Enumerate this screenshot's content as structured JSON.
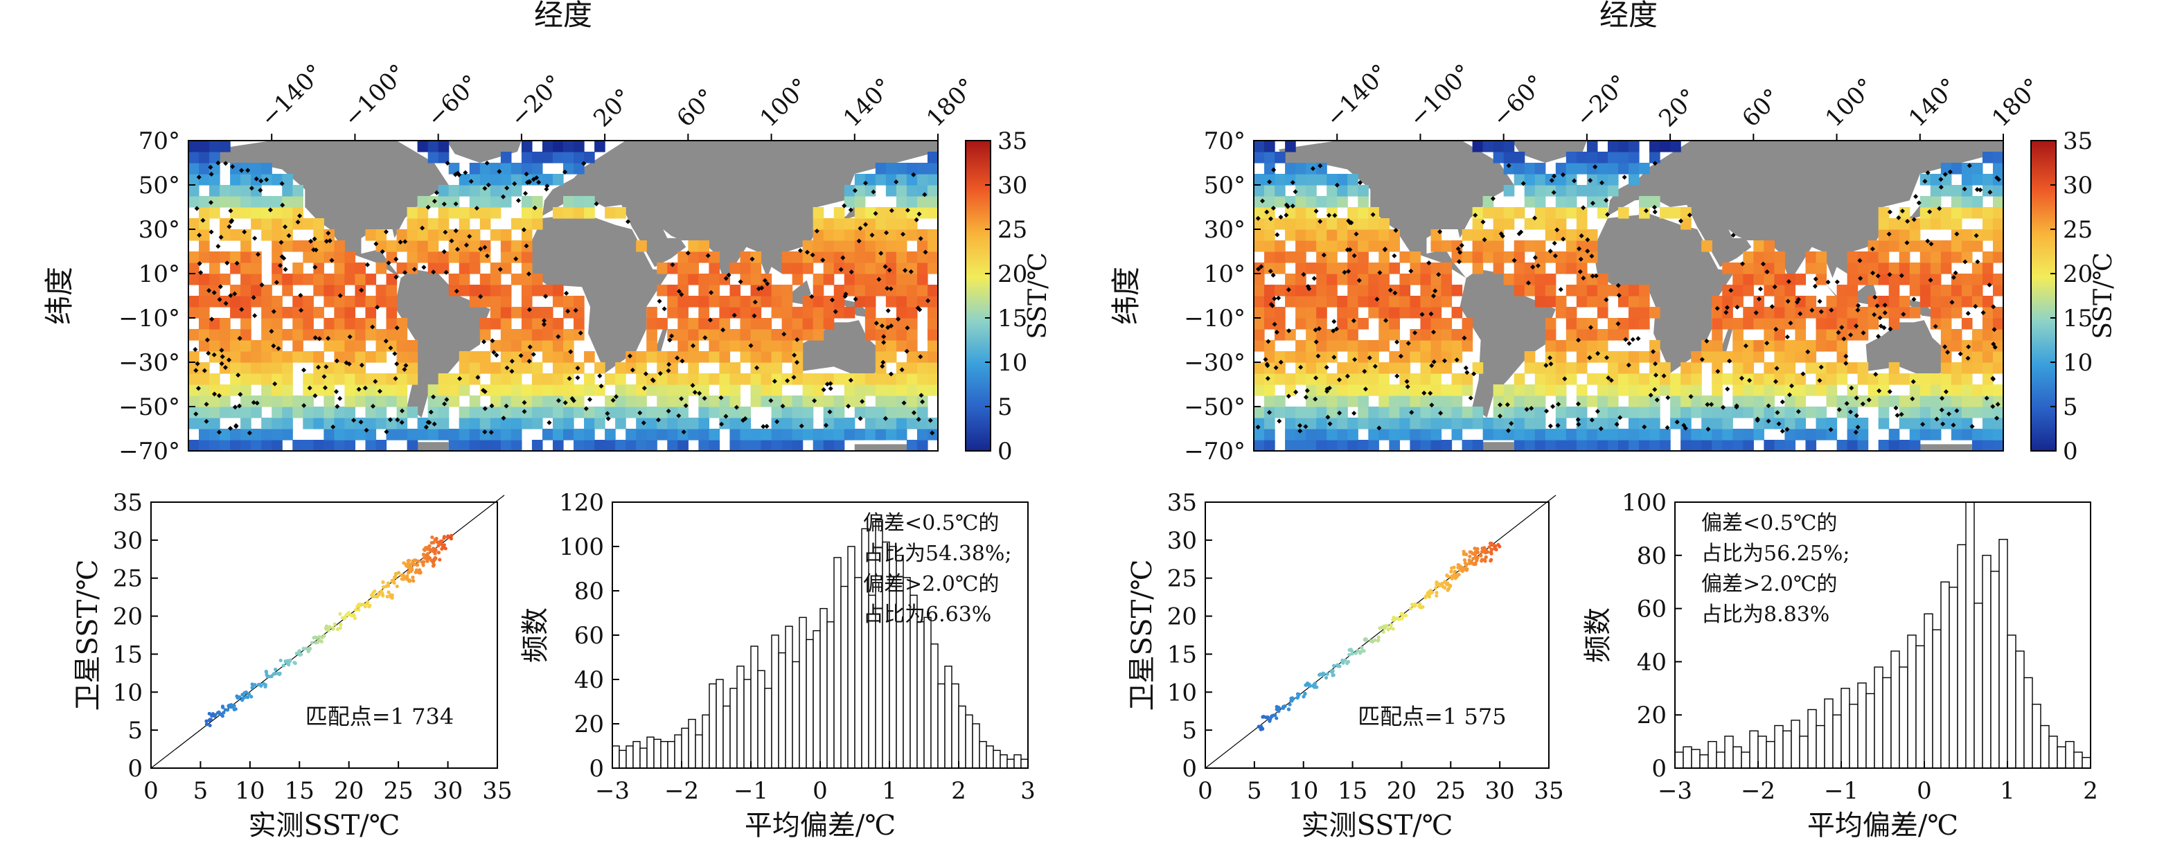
{
  "chart_data": [
    {
      "type": "heatmap",
      "panel": "map-left",
      "xlabel": "经度",
      "ylabel": "纬度",
      "x_ticks": [
        "−140°",
        "−100°",
        "−60°",
        "−20°",
        "20°",
        "60°",
        "100°",
        "140°",
        "180°"
      ],
      "x_tick_values": [
        -140,
        -100,
        -60,
        -20,
        20,
        60,
        100,
        140,
        180
      ],
      "y_ticks": [
        "70°",
        "50°",
        "30°",
        "10°",
        "−10°",
        "−30°",
        "−50°",
        "−70°"
      ],
      "y_tick_values": [
        70,
        50,
        30,
        10,
        -10,
        -30,
        -50,
        -70
      ],
      "xlim": [
        -180,
        180
      ],
      "ylim": [
        -70,
        70
      ],
      "colorbar": {
        "label": "SST/℃",
        "ticks": [
          "0",
          "5",
          "10",
          "15",
          "20",
          "25",
          "30",
          "35"
        ],
        "range": [
          0,
          35
        ]
      },
      "colors": {
        "land": "#8c8c8c",
        "no_data": "#ffffff",
        "matchup_points": "#000000"
      }
    },
    {
      "type": "heatmap",
      "panel": "map-right",
      "xlabel": "经度",
      "ylabel": "纬度",
      "x_ticks": [
        "−140°",
        "−100°",
        "−60°",
        "−20°",
        "20°",
        "60°",
        "100°",
        "140°",
        "180°"
      ],
      "x_tick_values": [
        -140,
        -100,
        -60,
        -20,
        20,
        60,
        100,
        140,
        180
      ],
      "y_ticks": [
        "70°",
        "50°",
        "30°",
        "10°",
        "−10°",
        "−30°",
        "−50°",
        "−70°"
      ],
      "y_tick_values": [
        70,
        50,
        30,
        10,
        -10,
        -30,
        -50,
        -70
      ],
      "xlim": [
        -180,
        180
      ],
      "ylim": [
        -70,
        70
      ],
      "colorbar": {
        "label": "SST/℃",
        "ticks": [
          "0",
          "5",
          "10",
          "15",
          "20",
          "25",
          "30",
          "35"
        ],
        "range": [
          0,
          35
        ]
      },
      "colors": {
        "land": "#8c8c8c",
        "no_data": "#ffffff",
        "matchup_points": "#000000"
      }
    },
    {
      "type": "scatter",
      "panel": "scatter-left",
      "xlabel": "实测SST/℃",
      "ylabel": "卫星SST/℃",
      "xlim": [
        0,
        35
      ],
      "ylim": [
        0,
        35
      ],
      "x_ticks": [
        "0",
        "5",
        "10",
        "15",
        "20",
        "25",
        "30",
        "35"
      ],
      "y_ticks": [
        "0",
        "5",
        "10",
        "15",
        "20",
        "25",
        "30",
        "35"
      ],
      "annotation": "匹配点=1 734",
      "reference_line": "y = x",
      "series": [
        {
          "x": [
            5.8,
            6.3,
            7.0,
            7.6,
            8.2,
            9.0,
            9.8,
            10.5,
            11.2,
            12.0,
            12.8,
            13.5,
            14.3,
            15.0,
            15.8,
            16.5,
            17.3,
            18.0,
            18.8,
            19.5,
            20.3,
            21.0,
            21.8,
            22.5,
            23.2,
            23.8,
            24.5,
            25.0,
            25.5,
            26.0,
            26.4,
            26.8,
            27.2,
            27.6,
            28.0,
            28.4,
            28.8,
            29.2,
            29.6,
            30.0,
            27.0,
            28.2,
            26.2,
            29.0,
            27.8,
            25.8,
            24.0,
            28.6
          ],
          "y": [
            6.0,
            6.8,
            7.1,
            8.0,
            8.0,
            9.3,
            9.6,
            10.9,
            11.0,
            12.4,
            12.6,
            13.9,
            14.0,
            15.3,
            15.6,
            16.9,
            17.0,
            18.3,
            18.6,
            19.9,
            20.1,
            21.2,
            21.6,
            22.9,
            23.0,
            24.1,
            24.3,
            25.4,
            25.2,
            26.5,
            26.1,
            27.2,
            26.9,
            28.0,
            27.6,
            28.8,
            28.5,
            29.5,
            29.2,
            30.3,
            25.8,
            27.0,
            25.0,
            27.6,
            29.0,
            27.0,
            22.8,
            30.0
          ]
        }
      ]
    },
    {
      "type": "bar",
      "panel": "hist-left",
      "xlabel": "平均偏差/℃",
      "ylabel": "频数",
      "xlim": [
        -3,
        3
      ],
      "ylim": [
        0,
        120
      ],
      "x_ticks": [
        "−3",
        "−2",
        "−1",
        "0",
        "1",
        "2",
        "3"
      ],
      "y_ticks": [
        "0",
        "20",
        "40",
        "60",
        "80",
        "100",
        "120"
      ],
      "annotation": [
        "偏差<0.5℃的",
        "占比为54.38%;",
        "偏差>2.0℃的",
        "占比为6.63%"
      ],
      "bin_start": -3,
      "bin_width": 0.1,
      "values": [
        10,
        8,
        10,
        12,
        9,
        14,
        13,
        12,
        12,
        15,
        18,
        22,
        15,
        24,
        38,
        40,
        28,
        36,
        46,
        40,
        55,
        44,
        36,
        60,
        52,
        64,
        48,
        68,
        58,
        62,
        72,
        66,
        95,
        82,
        100,
        86,
        108,
        78,
        112,
        102,
        100,
        96,
        86,
        78,
        66,
        68,
        56,
        38,
        46,
        38,
        28,
        24,
        20,
        12,
        10,
        8,
        6,
        4,
        6,
        4
      ]
    },
    {
      "type": "scatter",
      "panel": "scatter-right",
      "xlabel": "实测SST/℃",
      "ylabel": "卫星SST/℃",
      "xlim": [
        0,
        35
      ],
      "ylim": [
        0,
        35
      ],
      "x_ticks": [
        "0",
        "5",
        "10",
        "15",
        "20",
        "25",
        "30",
        "35"
      ],
      "y_ticks": [
        "0",
        "5",
        "10",
        "15",
        "20",
        "25",
        "30",
        "35"
      ],
      "annotation": "匹配点=1 575",
      "reference_line": "y = x",
      "series": [
        {
          "x": [
            5.5,
            6.2,
            6.9,
            7.6,
            8.3,
            9.0,
            9.8,
            10.5,
            11.2,
            12.0,
            12.8,
            13.5,
            14.3,
            15.0,
            15.8,
            16.5,
            17.3,
            18.0,
            18.8,
            19.5,
            20.3,
            21.0,
            21.8,
            22.5,
            23.2,
            23.8,
            24.5,
            25.0,
            25.5,
            26.0,
            26.4,
            26.8,
            27.2,
            27.6,
            28.0,
            28.4,
            28.8,
            29.2,
            29.6,
            26.6,
            27.4,
            28.8,
            25.4,
            24.6
          ],
          "y": [
            5.4,
            6.4,
            6.8,
            7.8,
            8.1,
            9.2,
            9.6,
            10.8,
            11.0,
            12.2,
            12.5,
            13.8,
            14.0,
            15.3,
            15.5,
            16.8,
            17.0,
            18.3,
            18.5,
            19.8,
            20.0,
            21.2,
            21.5,
            22.7,
            23.0,
            24.1,
            24.2,
            25.3,
            25.2,
            26.4,
            26.1,
            27.1,
            26.9,
            27.9,
            27.6,
            28.7,
            28.4,
            29.4,
            29.1,
            28.2,
            28.6,
            27.4,
            26.2,
            23.8
          ]
        }
      ]
    },
    {
      "type": "bar",
      "panel": "hist-right",
      "xlabel": "平均偏差/℃",
      "ylabel": "频数",
      "xlim": [
        -3,
        2
      ],
      "ylim": [
        0,
        100
      ],
      "x_ticks": [
        "−3",
        "−2",
        "−1",
        "0",
        "1",
        "2"
      ],
      "y_ticks": [
        "0",
        "20",
        "40",
        "60",
        "80",
        "100"
      ],
      "annotation": [
        "偏差<0.5℃的",
        "占比为56.25%;",
        "偏差>2.0℃的",
        "占比为8.83%"
      ],
      "bin_start": -3,
      "bin_width": 0.1,
      "values": [
        6,
        8,
        7,
        5,
        10,
        6,
        12,
        8,
        6,
        14,
        12,
        10,
        16,
        14,
        18,
        12,
        22,
        16,
        26,
        20,
        30,
        24,
        32,
        28,
        38,
        34,
        44,
        38,
        50,
        46,
        58,
        52,
        70,
        68,
        84,
        100,
        62,
        80,
        74,
        86,
        50,
        44,
        34,
        24,
        16,
        12,
        8,
        10,
        6,
        4
      ]
    }
  ]
}
